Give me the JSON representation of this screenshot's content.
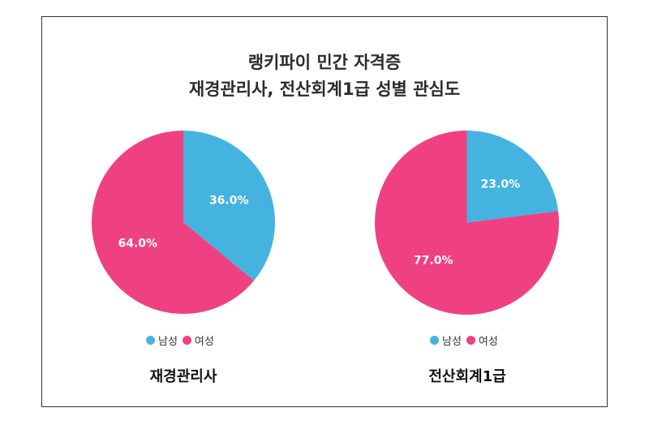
{
  "title_line1": "랭키파이 민간 자격증",
  "title_line2": "재경관리사, 전산회계1급 성별 관심도",
  "colors": {
    "male": "#45b3e0",
    "female": "#ef4181"
  },
  "chart_data": [
    {
      "type": "pie",
      "title": "재경관리사",
      "categories": [
        "남성",
        "여성"
      ],
      "values": [
        36.0,
        64.0
      ],
      "labels": [
        "36.0%",
        "64.0%"
      ],
      "legend": "bottom"
    },
    {
      "type": "pie",
      "title": "전산회계1급",
      "categories": [
        "남성",
        "여성"
      ],
      "values": [
        23.0,
        77.0
      ],
      "labels": [
        "23.0%",
        "77.0%"
      ],
      "legend": "bottom"
    }
  ]
}
